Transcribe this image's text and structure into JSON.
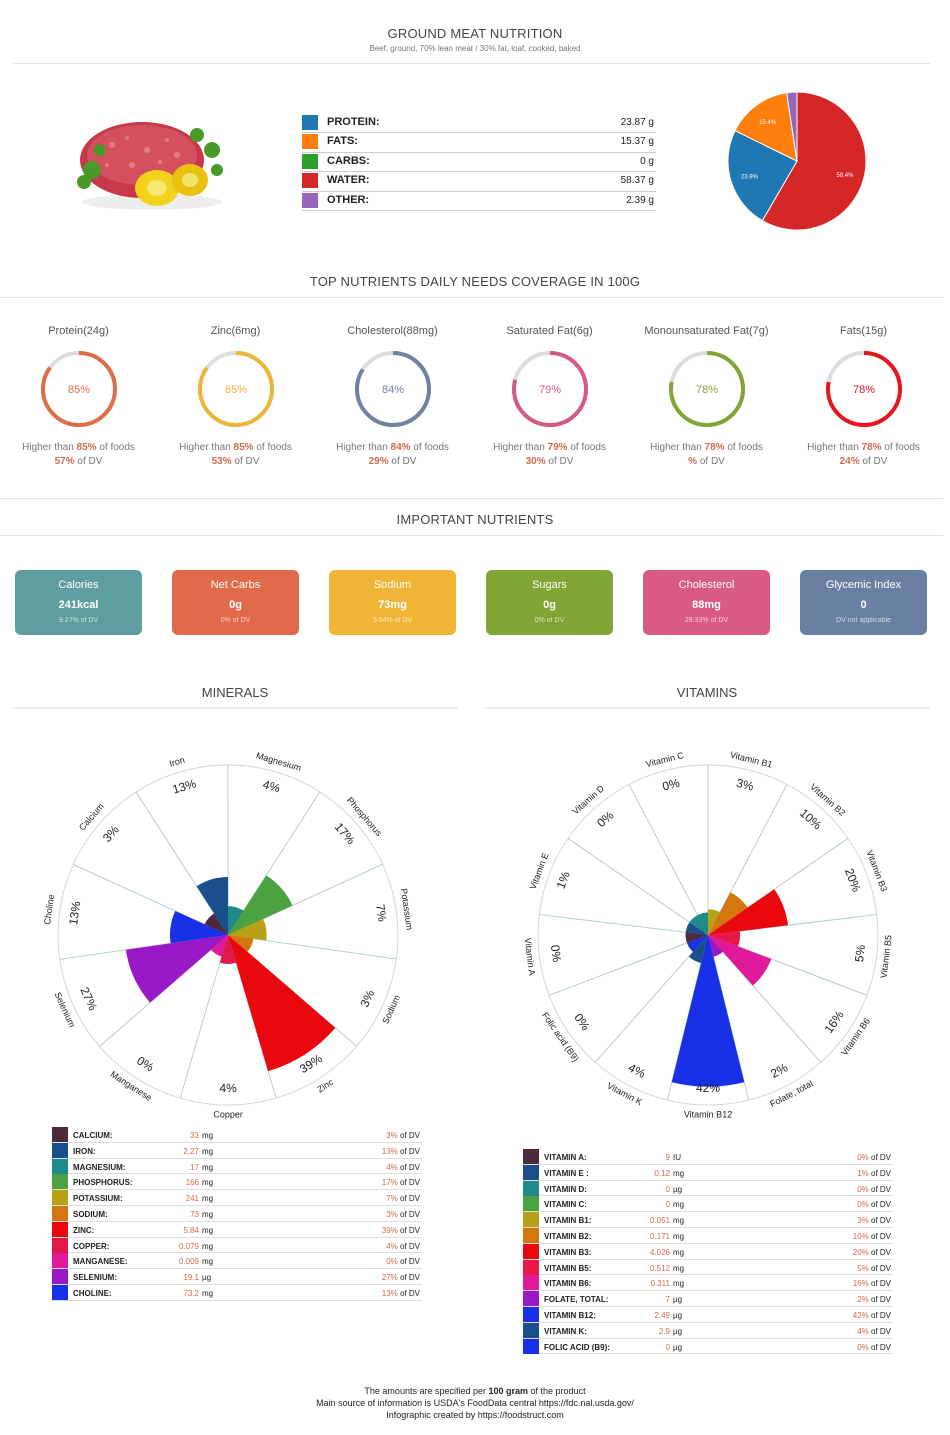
{
  "header": {
    "title": "GROUND MEAT NUTRITION",
    "subtitle": "Beef, ground, 70% lean meat / 30% fat, loaf, cooked, baked"
  },
  "macros": {
    "items": [
      {
        "label": "PROTEIN:",
        "value": "23.87 g",
        "color": "#1f77b4"
      },
      {
        "label": "FATS:",
        "value": "15.37 g",
        "color": "#ff7f0e"
      },
      {
        "label": "CARBS:",
        "value": "0 g",
        "color": "#2ca02c"
      },
      {
        "label": "WATER:",
        "value": "58.37 g",
        "color": "#d62728"
      },
      {
        "label": "OTHER:",
        "value": "2.39 g",
        "color": "#9467bd"
      }
    ]
  },
  "chart_data": [
    {
      "type": "pie",
      "labels": [
        "Protein",
        "Fats",
        "Carbs",
        "Water",
        "Other"
      ],
      "values": [
        23.87,
        15.37,
        0,
        58.37,
        2.39
      ],
      "colors": [
        "#1f77b4",
        "#ff7f0e",
        "#2ca02c",
        "#d62728",
        "#9467bd"
      ],
      "slice_labels": [
        "23.9%",
        "15.4%",
        "",
        "58.4%",
        ""
      ]
    },
    {
      "type": "polar-area",
      "title": "MINERALS",
      "categories": [
        "Calcium",
        "Iron",
        "Magnesium",
        "Phosphorus",
        "Potassium",
        "Sodium",
        "Zinc",
        "Copper",
        "Manganese",
        "Selenium",
        "Choline"
      ],
      "values": [
        3,
        13,
        4,
        17,
        7,
        3,
        39,
        4,
        0,
        27,
        13
      ],
      "value_labels": [
        "3%",
        "13%",
        "4%",
        "17%",
        "7%",
        "3%",
        "39%",
        "4%",
        "0%",
        "27%",
        "13%"
      ],
      "colors": [
        "#4a2a3c",
        "#1a4f8c",
        "#1f8a8a",
        "#4aa240",
        "#b8a017",
        "#d4760e",
        "#e8080e",
        "#e0184a",
        "#e0189a",
        "#9a18c8",
        "#1830e8"
      ]
    },
    {
      "type": "polar-area",
      "title": "VITAMINS",
      "categories": [
        "Vitamin C",
        "Vitamin B1",
        "Vitamin B2",
        "Vitamin B3",
        "Vitamin B5",
        "Vitamin B6",
        "Folate, total",
        "Vitamin B12",
        "Vitamin K",
        "Folic acid (B9)",
        "Vitamin A",
        "Vitamin E",
        "Vitamin D"
      ],
      "values": [
        0,
        3,
        10,
        20,
        5,
        16,
        2,
        42,
        4,
        0,
        0,
        1,
        0
      ],
      "value_labels": [
        "0%",
        "3%",
        "10%",
        "20%",
        "5%",
        "16%",
        "2%",
        "42%",
        "4%",
        "0%",
        "0%",
        "1%",
        "0%"
      ],
      "colors": [
        "#1f8a8a",
        "#b8a017",
        "#d4760e",
        "#e8080e",
        "#e8184a",
        "#e0189a",
        "#9a18c8",
        "#1830e8",
        "#1a4f8c",
        "#1830e8",
        "#4a2a3c",
        "#1a4f8c",
        "#1f8a8a"
      ]
    }
  ],
  "coverage": {
    "title": "TOP NUTRIENTS DAILY NEEDS COVERAGE IN 100G",
    "items": [
      {
        "name": "Protein(24g)",
        "pct": 85,
        "pct_label": "85%",
        "higher_prefix": "Higher than ",
        "higher_value": "85%",
        "higher_suffix": " of foods",
        "dv_value": "57%",
        "dv_suffix": " of DV",
        "color": "#de6e48"
      },
      {
        "name": "Zinc(6mg)",
        "pct": 85,
        "pct_label": "85%",
        "higher_prefix": "Higher than ",
        "higher_value": "85%",
        "higher_suffix": " of foods",
        "dv_value": "53%",
        "dv_suffix": " of DV",
        "color": "#e8b73a"
      },
      {
        "name": "Cholesterol(88mg)",
        "pct": 84,
        "pct_label": "84%",
        "higher_prefix": "Higher than ",
        "higher_value": "84%",
        "higher_suffix": " of foods",
        "dv_value": "29%",
        "dv_suffix": " of DV",
        "color": "#6e83a0"
      },
      {
        "name": "Saturated Fat(6g)",
        "pct": 79,
        "pct_label": "79%",
        "higher_prefix": "Higher than ",
        "higher_value": "79%",
        "higher_suffix": " of foods",
        "dv_value": "30%",
        "dv_suffix": " of DV",
        "color": "#d45a84"
      },
      {
        "name": "Monounsaturated Fat(7g)",
        "pct": 78,
        "pct_label": "78%",
        "higher_prefix": "Higher than ",
        "higher_value": "78%",
        "higher_suffix": " of foods",
        "dv_value": "%",
        "dv_suffix": " of DV",
        "color": "#83a537"
      },
      {
        "name": "Fats(15g)",
        "pct": 78,
        "pct_label": "78%",
        "higher_prefix": "Higher than ",
        "higher_value": "78%",
        "higher_suffix": " of foods",
        "dv_value": "24%",
        "dv_suffix": " of DV",
        "color": "#e5161f"
      }
    ]
  },
  "important": {
    "title": "IMPORTANT NUTRIENTS",
    "cards": [
      {
        "title": "Calories",
        "value": "241kcal",
        "dv": "9.27% of DV",
        "color": "#5f9ea0"
      },
      {
        "title": "Net Carbs",
        "value": "0g",
        "dv": "0% of DV",
        "color": "#e0694a"
      },
      {
        "title": "Sodium",
        "value": "73mg",
        "dv": "3.04% of DV",
        "color": "#f0b536"
      },
      {
        "title": "Sugars",
        "value": "0g",
        "dv": "0% of DV",
        "color": "#80a535"
      },
      {
        "title": "Cholesterol",
        "value": "88mg",
        "dv": "29.33% of DV",
        "color": "#d95a84"
      },
      {
        "title": "Glycemic Index",
        "value": "0",
        "dv": "DV not applicable",
        "color": "#6a80a2"
      }
    ]
  },
  "minerals": {
    "title": "MINERALS",
    "rows": [
      {
        "name": "CALCIUM:",
        "amount": "33",
        "unit": "mg",
        "dv_value": "3%",
        "dv_suffix": " of DV",
        "color": "#4a2a3c"
      },
      {
        "name": "IRON:",
        "amount": "2.27",
        "unit": "mg",
        "dv_value": "13%",
        "dv_suffix": " of DV",
        "color": "#1a4f8c"
      },
      {
        "name": "MAGNESIUM:",
        "amount": "17",
        "unit": "mg",
        "dv_value": "4%",
        "dv_suffix": " of DV",
        "color": "#1f8a8a"
      },
      {
        "name": "PHOSPHORUS:",
        "amount": "166",
        "unit": "mg",
        "dv_value": "17%",
        "dv_suffix": " of DV",
        "color": "#4aa240"
      },
      {
        "name": "POTASSIUM:",
        "amount": "241",
        "unit": "mg",
        "dv_value": "7%",
        "dv_suffix": " of DV",
        "color": "#b8a017"
      },
      {
        "name": "SODIUM:",
        "amount": "73",
        "unit": "mg",
        "dv_value": "3%",
        "dv_suffix": " of DV",
        "color": "#d4760e"
      },
      {
        "name": "ZINC:",
        "amount": "5.84",
        "unit": "mg",
        "dv_value": "39%",
        "dv_suffix": " of DV",
        "color": "#e8080e"
      },
      {
        "name": "COPPER:",
        "amount": "0.079",
        "unit": "mg",
        "dv_value": "4%",
        "dv_suffix": " of DV",
        "color": "#e0184a"
      },
      {
        "name": "MANGANESE:",
        "amount": "0.009",
        "unit": "mg",
        "dv_value": "0%",
        "dv_suffix": " of DV",
        "color": "#e0189a"
      },
      {
        "name": "SELENIUM:",
        "amount": "19.1",
        "unit": "µg",
        "dv_value": "27%",
        "dv_suffix": " of DV",
        "color": "#9a18c8"
      },
      {
        "name": "CHOLINE:",
        "amount": "73.2",
        "unit": "mg",
        "dv_value": "13%",
        "dv_suffix": " of DV",
        "color": "#1830e8"
      }
    ]
  },
  "vitamins": {
    "title": "VITAMINS",
    "rows": [
      {
        "name": "VITAMIN A:",
        "amount": "9",
        "unit": "IU",
        "dv_value": "0%",
        "dv_suffix": " of DV",
        "color": "#4a2a3c"
      },
      {
        "name": "VITAMIN E :",
        "amount": "0.12",
        "unit": "mg",
        "dv_value": "1%",
        "dv_suffix": " of DV",
        "color": "#1a4f8c"
      },
      {
        "name": "VITAMIN D:",
        "amount": "0",
        "unit": "µg",
        "dv_value": "0%",
        "dv_suffix": " of DV",
        "color": "#1f8a8a"
      },
      {
        "name": "VITAMIN C:",
        "amount": "0",
        "unit": "mg",
        "dv_value": "0%",
        "dv_suffix": " of DV",
        "color": "#4aa240"
      },
      {
        "name": "VITAMIN B1:",
        "amount": "0.051",
        "unit": "mg",
        "dv_value": "3%",
        "dv_suffix": " of DV",
        "color": "#b8a017"
      },
      {
        "name": "VITAMIN B2:",
        "amount": "0.171",
        "unit": "mg",
        "dv_value": "10%",
        "dv_suffix": " of DV",
        "color": "#d4760e"
      },
      {
        "name": "VITAMIN B3:",
        "amount": "4.026",
        "unit": "mg",
        "dv_value": "20%",
        "dv_suffix": " of DV",
        "color": "#e8080e"
      },
      {
        "name": "VITAMIN B5:",
        "amount": "0.512",
        "unit": "mg",
        "dv_value": "5%",
        "dv_suffix": " of DV",
        "color": "#e8184a"
      },
      {
        "name": "VITAMIN B6:",
        "amount": "0.311",
        "unit": "mg",
        "dv_value": "16%",
        "dv_suffix": " of DV",
        "color": "#e0189a"
      },
      {
        "name": "FOLATE, TOTAL:",
        "amount": "7",
        "unit": "µg",
        "dv_value": "2%",
        "dv_suffix": " of DV",
        "color": "#9a18c8"
      },
      {
        "name": "VITAMIN B12:",
        "amount": "2.49",
        "unit": "µg",
        "dv_value": "42%",
        "dv_suffix": " of DV",
        "color": "#1830e8"
      },
      {
        "name": "VITAMIN K:",
        "amount": "2.9",
        "unit": "µg",
        "dv_value": "4%",
        "dv_suffix": " of DV",
        "color": "#1a4f8c"
      },
      {
        "name": "FOLIC ACID (B9):",
        "amount": "0",
        "unit": "µg",
        "dv_value": "0%",
        "dv_suffix": " of DV",
        "color": "#1830e8"
      }
    ]
  },
  "footer": {
    "line1_prefix": "The amounts are specified per ",
    "line1_bold": "100 gram",
    "line1_suffix": " of the product",
    "line2": "Main source of information is USDA's FoodData central https://fdc.nal.usda.gov/",
    "line3": "Infographic created by https://foodstruct.com"
  }
}
